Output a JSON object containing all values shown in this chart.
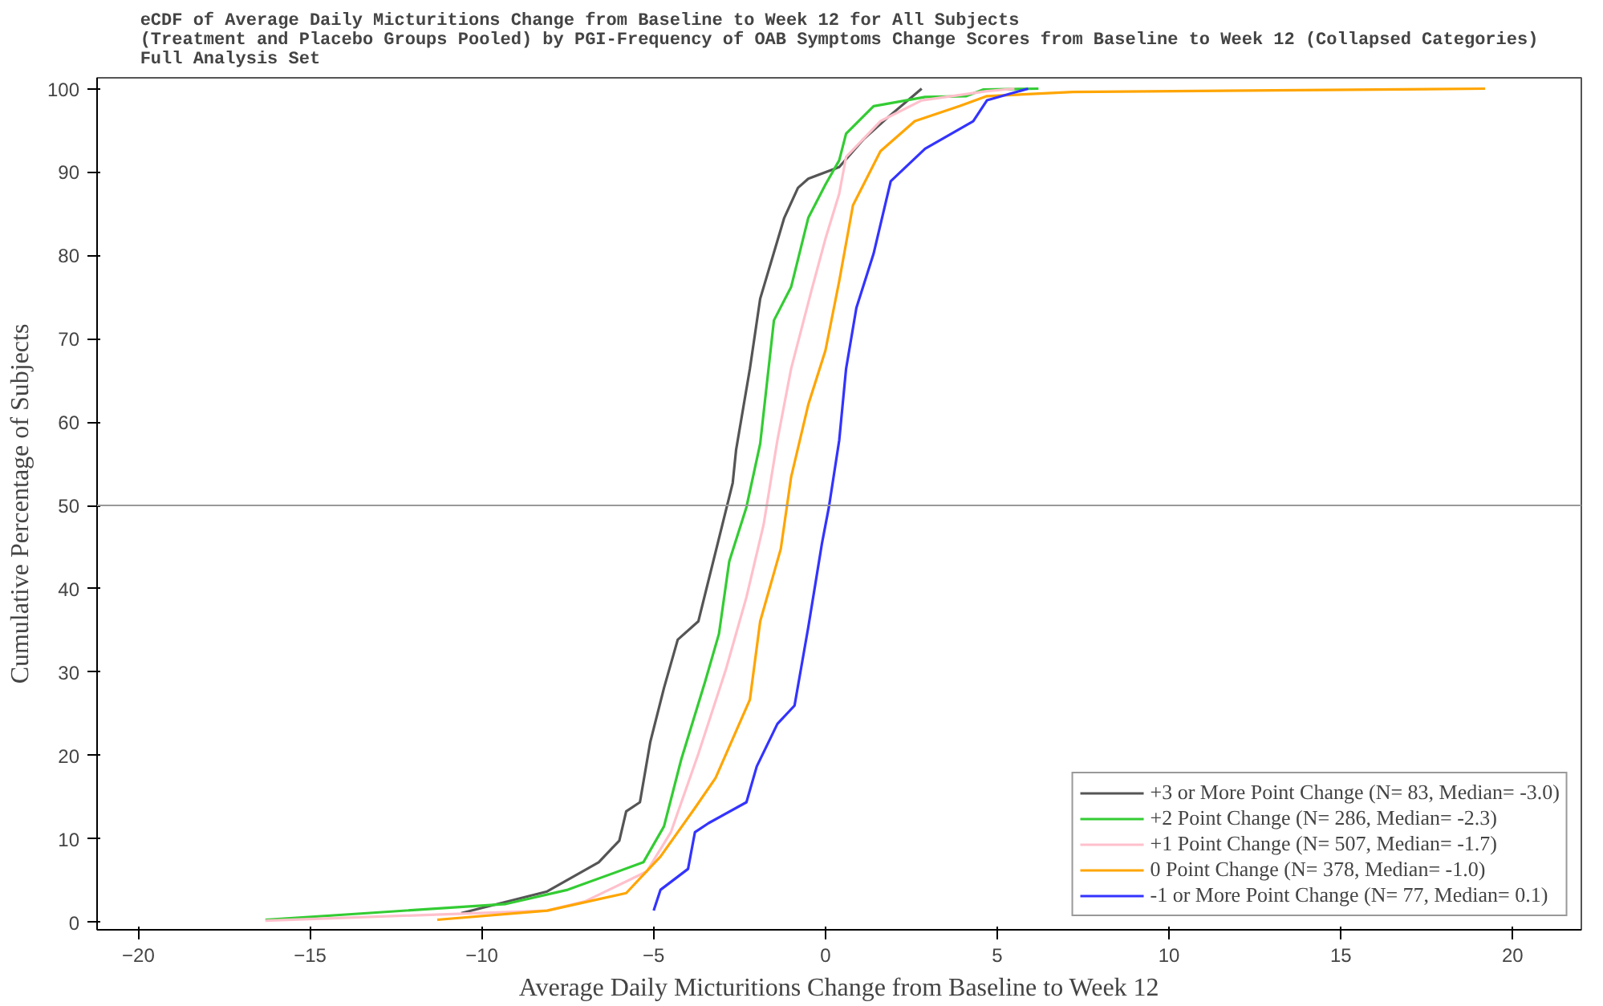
{
  "chart_data": {
    "type": "line",
    "title": "eCDF of Average Daily Micturitions Change from Baseline to Week 12 for All Subjects\n(Treatment and Placebo Groups Pooled) by PGI-Frequency of OAB Symptoms Change Scores from Baseline to Week 12 (Collapsed Categories)\nFull Analysis Set",
    "xlabel": "Average Daily Micturitions Change from Baseline to Week 12",
    "ylabel": "Cumulative Percentage of Subjects",
    "xlim": [
      -21.2,
      22
    ],
    "ylim": [
      -0.9,
      101.3
    ],
    "xticks": [
      -20,
      -15,
      -10,
      -5,
      0,
      5,
      10,
      15,
      20
    ],
    "yticks": [
      0,
      10,
      20,
      30,
      40,
      50,
      60,
      70,
      80,
      90,
      100
    ],
    "grid": false,
    "legend": "bottom right",
    "line_style": "solid",
    "marker": "none",
    "ref_lines": [
      {
        "axis": "y",
        "value": 50,
        "color": "#999999"
      }
    ],
    "series": [
      {
        "name": "+3 or More Point Change (N= 83, Median= -3.0)",
        "color": "#555555",
        "x": [
          -10.6,
          -8.1,
          -6.6,
          -6.0,
          -5.8,
          -5.4,
          -5.1,
          -4.7,
          -4.3,
          -3.7,
          -3.0,
          -2.7,
          -2.6,
          -2.2,
          -1.9,
          -1.2,
          -0.8,
          -0.5,
          0.4,
          1.1,
          1.8,
          2.8
        ],
        "values": [
          1.1,
          3.7,
          7.2,
          9.8,
          13.3,
          14.4,
          21.6,
          28.1,
          33.9,
          36.1,
          47.7,
          52.7,
          56.7,
          66.4,
          74.8,
          84.5,
          88.1,
          89.2,
          90.6,
          93.9,
          96.5,
          100
        ]
      },
      {
        "name": "+2 Point Change (N= 286, Median= -2.3)",
        "color": "#33cc33",
        "x": [
          -16.3,
          -13.7,
          -9.3,
          -7.5,
          -5.3,
          -4.7,
          -4.2,
          -3.5,
          -3.1,
          -2.8,
          -2.3,
          -1.9,
          -1.5,
          -1.0,
          -0.5,
          0.0,
          0.4,
          0.6,
          1.4,
          2.9,
          4.1,
          4.6,
          6.2
        ],
        "values": [
          0.3,
          1.0,
          2.2,
          3.9,
          7.2,
          11.5,
          19.5,
          28.9,
          34.6,
          43.3,
          49.8,
          57.4,
          72.2,
          76.2,
          84.5,
          88.5,
          91.4,
          94.6,
          97.9,
          99.0,
          99.1,
          99.9,
          100
        ]
      },
      {
        "name": "+1 Point Change (N= 507, Median= -1.7)",
        "color": "#ffc0cb",
        "x": [
          -16.3,
          -8.1,
          -7.0,
          -5.2,
          -4.5,
          -3.7,
          -2.9,
          -2.3,
          -1.8,
          -1.4,
          -1.0,
          -0.4,
          0.0,
          0.4,
          0.6,
          1.6,
          2.8,
          4.7,
          5.5
        ],
        "values": [
          0.2,
          1.4,
          2.5,
          6.1,
          10.8,
          20.2,
          30.3,
          39.0,
          47.7,
          57.8,
          66.4,
          75.9,
          82.0,
          87.4,
          91.8,
          96.1,
          98.6,
          99.7,
          100
        ]
      },
      {
        "name": "0 Point Change (N= 378, Median= -1.0)",
        "color": "#ffa500",
        "x": [
          -11.3,
          -8.1,
          -5.8,
          -4.8,
          -3.8,
          -3.2,
          -2.2,
          -1.9,
          -1.3,
          -1.0,
          -0.5,
          0.0,
          0.4,
          0.8,
          1.6,
          2.6,
          3.9,
          4.7,
          7.2,
          19.2
        ],
        "values": [
          0.3,
          1.4,
          3.5,
          7.9,
          13.7,
          17.3,
          26.7,
          36.1,
          44.8,
          53.4,
          62.1,
          68.6,
          76.9,
          86.0,
          92.5,
          96.1,
          97.9,
          99.1,
          99.6,
          100
        ]
      },
      {
        "name": "-1 or More Point Change (N= 77, Median= 0.1)",
        "color": "#3333ff",
        "x": [
          -5.0,
          -4.8,
          -4.0,
          -3.8,
          -3.4,
          -2.3,
          -2.0,
          -1.4,
          -0.9,
          -0.5,
          -0.1,
          0.1,
          0.4,
          0.6,
          0.9,
          1.4,
          1.9,
          2.9,
          4.3,
          4.7,
          5.9
        ],
        "values": [
          1.4,
          3.9,
          6.4,
          10.8,
          11.9,
          14.4,
          18.7,
          23.8,
          26.0,
          35.4,
          45.5,
          49.8,
          57.8,
          66.4,
          73.7,
          80.2,
          88.9,
          92.8,
          96.1,
          98.6,
          100
        ]
      }
    ]
  }
}
